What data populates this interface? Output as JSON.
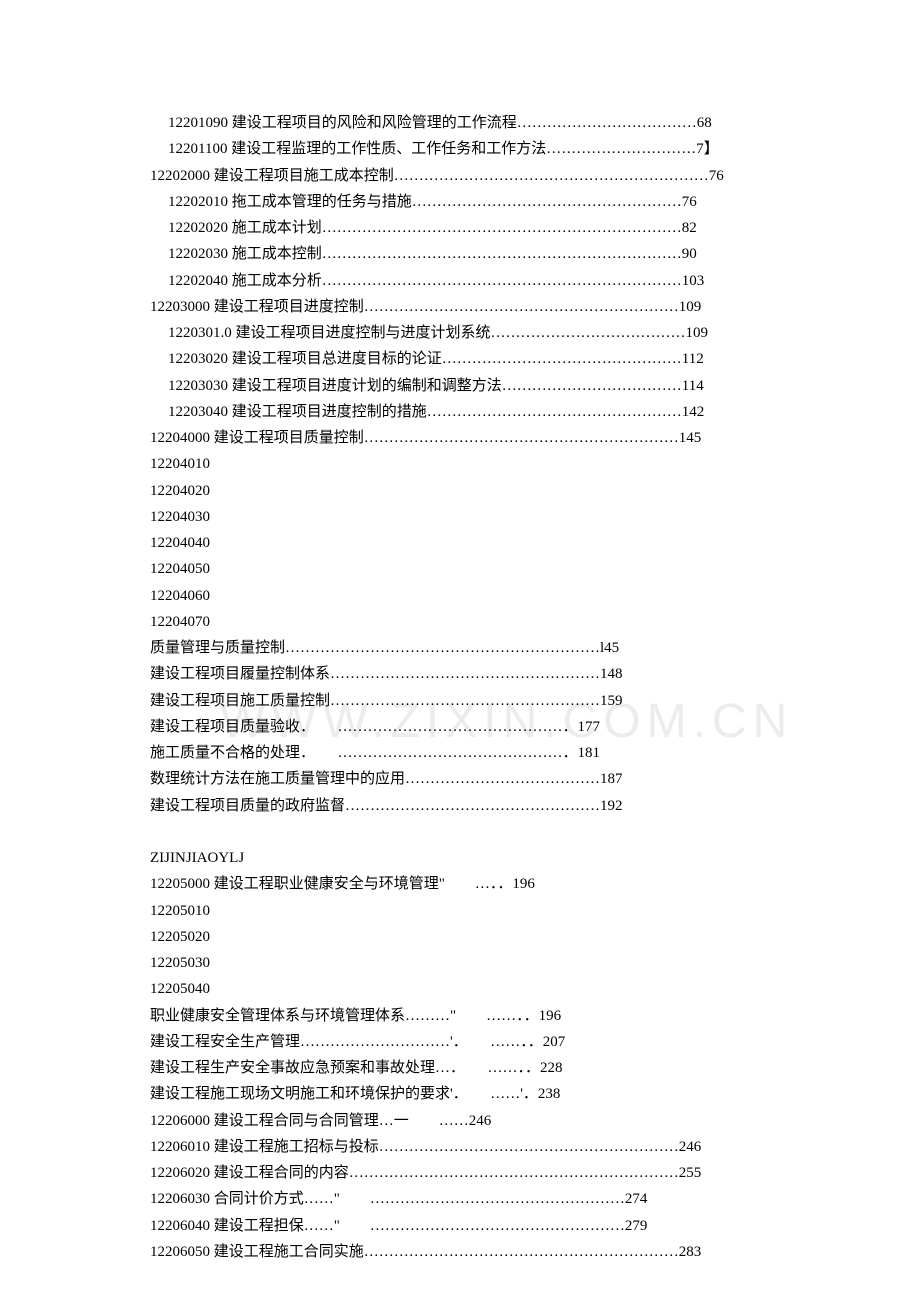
{
  "watermark": "WWW.ZIXIN.COM.CN",
  "lines": [
    {
      "indent": 2,
      "text": "12201090 建设工程项目的风险和风险管理的工作流程………………………………68"
    },
    {
      "indent": 2,
      "text": "12201100 建设工程监理的工作性质、工作任务和工作方法…………………………7】"
    },
    {
      "indent": 1,
      "text": "12202000 建设工程项目施工成本控制………………………………………………………76"
    },
    {
      "indent": 2,
      "text": "12202010 拖工成本管理的任务与措施………………………………………………76"
    },
    {
      "indent": 2,
      "text": "12202020 施工成本计划………………………………………………………………82"
    },
    {
      "indent": 2,
      "text": "12202030 施工成本控制………………………………………………………………90"
    },
    {
      "indent": 2,
      "text": "12202040 施工成本分析………………………………………………………………103"
    },
    {
      "indent": 1,
      "text": "12203000 建设工程项目进度控制………………………………………………………109"
    },
    {
      "indent": 2,
      "text": "1220301.0 建设工程项目进度控制与进度计划系统…………………………………109"
    },
    {
      "indent": 2,
      "text": "12203020 建设工程项目总进度目标的论证…………………………………………112"
    },
    {
      "indent": 2,
      "text": "12203030 建设工程项目进度计划的编制和调整方法………………………………114"
    },
    {
      "indent": 2,
      "text": "12203040 建设工程项目进度控制的措施……………………………………………142"
    },
    {
      "indent": 1,
      "text": "12204000 建设工程项目质量控制………………………………………………………145"
    },
    {
      "indent": 1,
      "text": "12204010"
    },
    {
      "indent": 1,
      "text": "12204020"
    },
    {
      "indent": 1,
      "text": "12204030"
    },
    {
      "indent": 1,
      "text": "12204040"
    },
    {
      "indent": 1,
      "text": "12204050"
    },
    {
      "indent": 1,
      "text": "12204060"
    },
    {
      "indent": 1,
      "text": "12204070"
    },
    {
      "indent": 1,
      "text": "质量管理与质量控制………………………………………………………l45"
    },
    {
      "indent": 1,
      "text": "建设工程项目履量控制体系………………………………………………148"
    },
    {
      "indent": 1,
      "text": "建设工程项目施工质量控制………………………………………………159"
    },
    {
      "indent": 1,
      "text": "建设工程项目质量验收．　　………………………………………．177"
    },
    {
      "indent": 1,
      "text": "施工质量不合格的处理．　　………………………………………．181"
    },
    {
      "indent": 1,
      "text": "数理统计方法在施工质量管理中的应用…………………………………187"
    },
    {
      "indent": 1,
      "text": "建设工程项目质量的政府监督……………………………………………192"
    },
    {
      "blank": true
    },
    {
      "indent": 1,
      "text": "ZIJINJIAOYLJ"
    },
    {
      "indent": 1,
      "text": "12205000 建设工程职业健康安全与环境管理\"　　…．．196"
    },
    {
      "indent": 1,
      "text": "12205010"
    },
    {
      "indent": 1,
      "text": "12205020"
    },
    {
      "indent": 1,
      "text": "12205030"
    },
    {
      "indent": 1,
      "text": "12205040"
    },
    {
      "indent": 1,
      "text": "职业健康安全管理体系与环境管理体系………\"　　……．．196"
    },
    {
      "indent": 1,
      "text": "建设工程安全生产管理…………………………'．　　……．．207"
    },
    {
      "indent": 1,
      "text": "建设工程生产安全事故应急预案和事故处理…．　　……．．228"
    },
    {
      "indent": 1,
      "text": "建设工程施工现场文明施工和环境保护的要求'．　　……'．238"
    },
    {
      "indent": 1,
      "text": "12206000 建设工程合同与合同管理…一　　……246"
    },
    {
      "indent": 1,
      "text": "12206010 建设工程施工招标与投标……………………………………………………246"
    },
    {
      "indent": 1,
      "text": "12206020 建设工程合同的内容…………………………………………………………255"
    },
    {
      "indent": 1,
      "text": "12206030 合同计价方式……\"　　……………………………………………274"
    },
    {
      "indent": 1,
      "text": "12206040 建设工程担保……\"　　……………………………………………279"
    },
    {
      "indent": 1,
      "text": "12206050 建设工程施工合同实施………………………………………………………283"
    }
  ]
}
